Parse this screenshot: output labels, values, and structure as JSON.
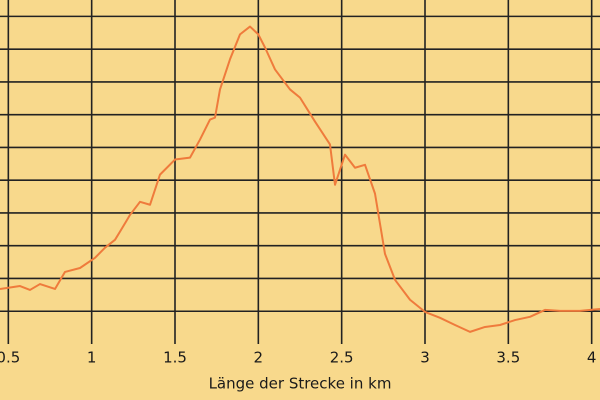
{
  "chart_data": {
    "type": "line",
    "x_label": "Länge der Strecke in km",
    "x": [
      0.45,
      0.57,
      0.63,
      0.69,
      0.78,
      0.84,
      0.93,
      1.02,
      1.08,
      1.14,
      1.17,
      1.23,
      1.29,
      1.35,
      1.41,
      1.5,
      1.59,
      1.65,
      1.71,
      1.74,
      1.77,
      1.83,
      1.89,
      1.95,
      2.0,
      2.04,
      2.1,
      2.19,
      2.25,
      2.34,
      2.43,
      2.46,
      2.52,
      2.58,
      2.64,
      2.7,
      2.76,
      2.82,
      2.91,
      3.0,
      3.09,
      3.18,
      3.27,
      3.36,
      3.45,
      3.54,
      3.63,
      3.72,
      3.81,
      3.93,
      4.05
    ],
    "values": [
      1.68,
      1.77,
      1.65,
      1.83,
      1.68,
      2.2,
      2.32,
      2.63,
      2.94,
      3.18,
      3.43,
      3.94,
      4.34,
      4.25,
      5.17,
      5.63,
      5.69,
      6.24,
      6.85,
      6.91,
      7.77,
      8.69,
      9.45,
      9.69,
      9.45,
      9.05,
      8.38,
      7.77,
      7.52,
      6.79,
      6.09,
      4.86,
      5.78,
      5.38,
      5.47,
      4.59,
      2.75,
      1.96,
      1.35,
      0.98,
      0.8,
      0.58,
      0.37,
      0.52,
      0.58,
      0.73,
      0.83,
      1.04,
      1.01,
      1.01,
      1.07
    ],
    "color": "#ef7b3c",
    "xlim": [
      0.45,
      4.05
    ],
    "xticks": [
      0.5,
      1,
      1.5,
      2,
      2.5,
      3,
      3.5,
      4
    ],
    "ylim": [
      0,
      10.5
    ],
    "yticks": [
      1,
      2,
      3,
      4,
      5,
      6,
      7,
      8,
      9,
      10
    ],
    "grid": true
  }
}
